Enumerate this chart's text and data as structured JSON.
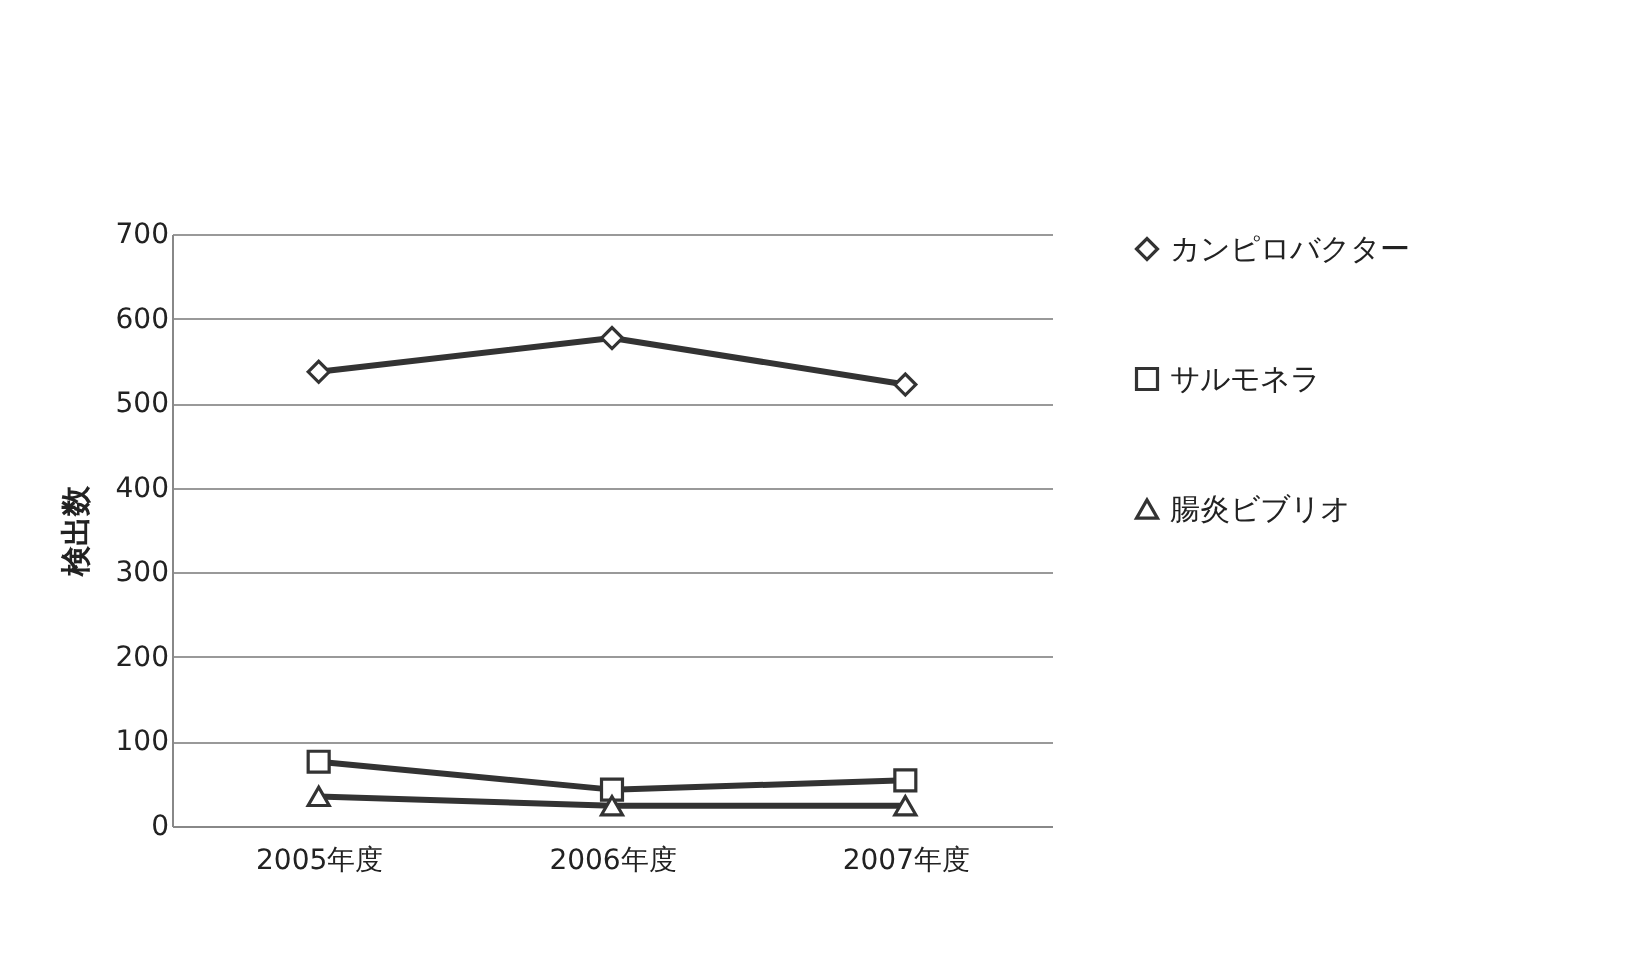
{
  "chart_data": {
    "type": "line",
    "ylabel": "検出数",
    "categories": [
      "2005年度",
      "2006年度",
      "2007年度"
    ],
    "series": [
      {
        "name": "カンピロバクター",
        "color": "#333333",
        "marker": "diamond",
        "values": [
          537,
          577,
          522
        ]
      },
      {
        "name": "サルモネラ",
        "color": "#333333",
        "marker": "square",
        "values": [
          76,
          43,
          54
        ]
      },
      {
        "name": "腸炎ビブリオ",
        "color": "#333333",
        "marker": "triangle",
        "values": [
          35,
          24,
          24
        ]
      }
    ],
    "ylim": [
      0,
      700
    ],
    "yticks": [
      0,
      100,
      200,
      300,
      400,
      500,
      600,
      700
    ],
    "grid": "y",
    "legend": "right",
    "line_style": "solid"
  }
}
